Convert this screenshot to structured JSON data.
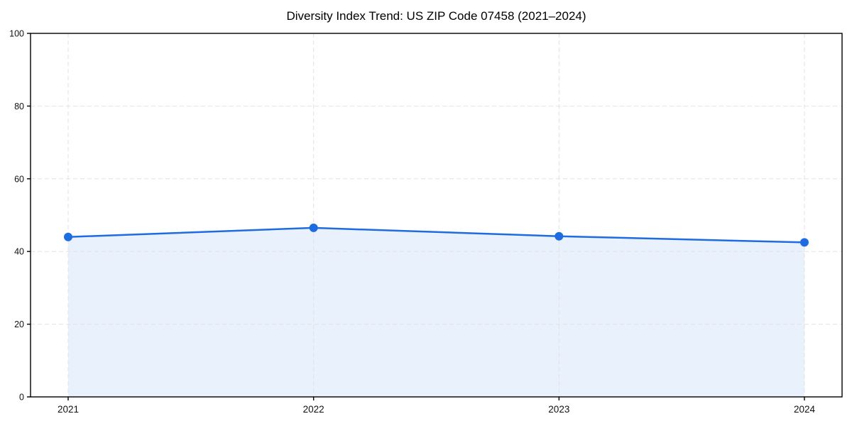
{
  "page": {
    "background": "#ffffff"
  },
  "chart_data": {
    "type": "area",
    "title": "Diversity Index Trend: US ZIP Code 07458 (2021–2024)",
    "categories": [
      "2021",
      "2022",
      "2023",
      "2024"
    ],
    "values": [
      44,
      46.5,
      44.2,
      42.5
    ],
    "xlabel": "",
    "ylabel": "",
    "ylim": [
      0,
      100
    ],
    "yticks": [
      0,
      20,
      40,
      60,
      80,
      100
    ],
    "grid": "dashed-both-axes",
    "legend_position": "none",
    "marker": "circle",
    "colors": {
      "line": "#1f6ce0",
      "marker": "#1f6ce0",
      "fill": "#e8f1fc",
      "grid": "#e2e2e2",
      "axis": "#000000",
      "tick_text": "#111111",
      "background": "#ffffff"
    }
  }
}
